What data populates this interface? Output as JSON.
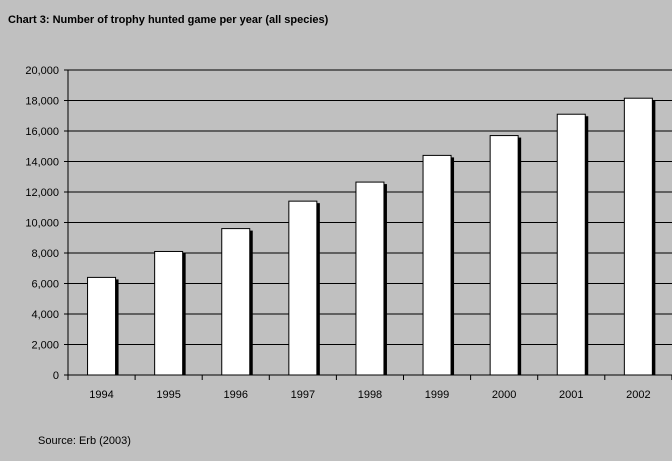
{
  "chart_data": {
    "type": "bar",
    "title": "Chart 3: Number of trophy hunted game per year (all species)",
    "categories": [
      "1994",
      "1995",
      "1996",
      "1997",
      "1998",
      "1999",
      "2000",
      "2001",
      "2002"
    ],
    "values": [
      6400,
      8100,
      9600,
      11400,
      12650,
      14400,
      15700,
      17100,
      18150
    ],
    "ylim": [
      0,
      20000
    ],
    "yticks": [
      0,
      2000,
      4000,
      6000,
      8000,
      10000,
      12000,
      14000,
      16000,
      18000,
      20000
    ],
    "ytick_labels": [
      "0",
      "2,000",
      "4,000",
      "6,000",
      "8,000",
      "10,000",
      "12,000",
      "14,000",
      "16,000",
      "18,000",
      "20,000"
    ],
    "grid": true,
    "xlabel": "",
    "ylabel": "",
    "bar_color": "#ffffff",
    "background_color": "#c0c0c0",
    "source": "Source: Erb (2003)"
  }
}
